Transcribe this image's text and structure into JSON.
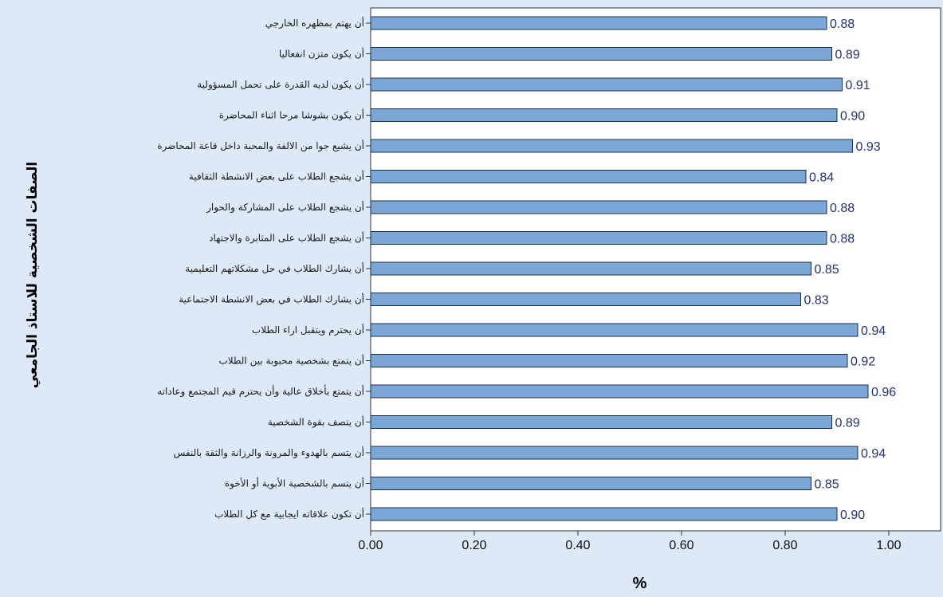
{
  "chart_data": {
    "type": "bar",
    "orientation": "horizontal",
    "categories": [
      "أن يهتم بمظهره الخارجي",
      "أن يكون متزن انفعاليا",
      "أن يكون لديه القدرة على تحمل المسؤولية",
      "أن يكون بشوشا مرحا اثناء المحاضرة",
      "أن يشيع جوا من الالفة والمحبة داخل قاعة المحاضرة",
      "أن يشجع الطلاب على بعض الانشطة الثقافية",
      "أن يشجع الطلاب على المشاركة والحوار",
      "أن يشجع الطلاب على المثابرة والاجتهاد",
      "أن يشارك الطلاب في حل مشكلاتهم التعليمية",
      "أن يشارك الطلاب في بعض الانشطة الاجتماعية",
      "أن يحترم ويتقبل اراء الطلاب",
      "أن يتمتع بشخصية محبوبة بين الطلاب",
      "أن يتمتع بأخلاق عالية وأن يحترم قيم المجتمع وعاداته",
      "أن يتصف بقوة الشخصية",
      "أن يتسم بالهدوء والمرونة والرزانة والثقة بالنفس",
      "أن يتسم بالشخصية الأبوية أو الأخوة",
      "أن تكون علاقاته ايجابية مع كل الطلاب"
    ],
    "values": [
      0.88,
      0.89,
      0.91,
      0.9,
      0.93,
      0.84,
      0.88,
      0.88,
      0.85,
      0.83,
      0.94,
      0.92,
      0.96,
      0.89,
      0.94,
      0.85,
      0.9
    ],
    "value_labels": [
      "0.88",
      "0.89",
      "0.91",
      "0.90",
      "0.93",
      "0.84",
      "0.88",
      "0.88",
      "0.85",
      "0.83",
      "0.94",
      "0.92",
      "0.96",
      "0.89",
      "0.94",
      "0.85",
      "0.90"
    ],
    "xlabel": "%",
    "ylabel": "الصفات الشخصية للاستاذ الجامعي",
    "xlim": [
      0,
      1.1
    ],
    "xticks": [
      0,
      0.2,
      0.4,
      0.6,
      0.8,
      1.0
    ],
    "xtick_labels": [
      "0.00",
      "0.20",
      "0.40",
      "0.60",
      "0.80",
      "1.00"
    ],
    "grid": false,
    "legend": "none"
  },
  "colors": {
    "background": "#dde9f7",
    "plot_background": "#ffffff",
    "bar_fill": "#7ba7d7",
    "bar_stroke": "#1c2f4a",
    "value_text": "#22307a"
  }
}
